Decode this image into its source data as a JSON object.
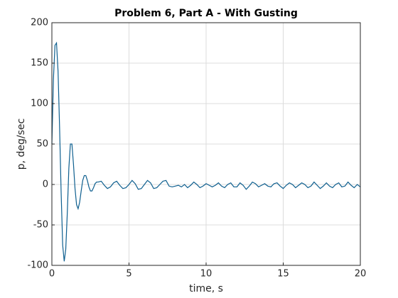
{
  "chart_data": {
    "type": "line",
    "title": "Problem 6, Part A - With Gusting",
    "xlabel": "time, s",
    "ylabel": "p, deg/sec",
    "xlim": [
      0,
      20
    ],
    "ylim": [
      -100,
      200
    ],
    "xticks": [
      0,
      5,
      10,
      15,
      20
    ],
    "yticks": [
      -100,
      -50,
      0,
      50,
      100,
      150,
      200
    ],
    "grid": true,
    "x": [
      0,
      0.1,
      0.2,
      0.3,
      0.4,
      0.5,
      0.6,
      0.7,
      0.8,
      0.9,
      1.0,
      1.1,
      1.2,
      1.3,
      1.4,
      1.5,
      1.6,
      1.7,
      1.8,
      1.9,
      2.0,
      2.1,
      2.2,
      2.3,
      2.4,
      2.5,
      2.6,
      2.7,
      2.8,
      2.9,
      3.0,
      3.2,
      3.4,
      3.6,
      3.8,
      4.0,
      4.2,
      4.4,
      4.6,
      4.8,
      5.0,
      5.2,
      5.4,
      5.6,
      5.8,
      6.0,
      6.2,
      6.4,
      6.6,
      6.8,
      7.0,
      7.2,
      7.4,
      7.6,
      7.8,
      8.0,
      8.2,
      8.4,
      8.6,
      8.8,
      9.0,
      9.2,
      9.4,
      9.6,
      9.8,
      10.0,
      10.2,
      10.4,
      10.6,
      10.8,
      11.0,
      11.2,
      11.4,
      11.6,
      11.8,
      12.0,
      12.2,
      12.4,
      12.6,
      12.8,
      13.0,
      13.2,
      13.4,
      13.6,
      13.8,
      14.0,
      14.2,
      14.4,
      14.6,
      14.8,
      15.0,
      15.2,
      15.4,
      15.6,
      15.8,
      16.0,
      16.2,
      16.4,
      16.6,
      16.8,
      17.0,
      17.2,
      17.4,
      17.6,
      17.8,
      18.0,
      18.2,
      18.4,
      18.6,
      18.8,
      19.0,
      19.2,
      19.4,
      19.6,
      19.8,
      20.0
    ],
    "series": [
      {
        "name": "p",
        "color": "#0e5f8f",
        "values": [
          50,
          130,
          172,
          175,
          140,
          70,
          -10,
          -75,
          -95,
          -80,
          -35,
          20,
          50,
          50,
          25,
          -5,
          -25,
          -30,
          -22,
          -8,
          5,
          11,
          11,
          5,
          -3,
          -8,
          -8,
          -4,
          1,
          3,
          3,
          4,
          -1,
          -5,
          -3,
          2,
          4,
          -1,
          -5,
          -4,
          0,
          5,
          1,
          -6,
          -5,
          0,
          5,
          2,
          -5,
          -4,
          0,
          4,
          5,
          -2,
          -3,
          -2,
          -1,
          -3,
          0,
          -4,
          -1,
          3,
          0,
          -4,
          -2,
          1,
          -1,
          -3,
          -1,
          2,
          -2,
          -4,
          0,
          2,
          -3,
          -3,
          2,
          -1,
          -6,
          -2,
          3,
          1,
          -3,
          -1,
          1,
          -2,
          -3,
          1,
          2,
          -2,
          -5,
          -1,
          2,
          0,
          -4,
          -1,
          2,
          0,
          -4,
          -2,
          3,
          -1,
          -5,
          -2,
          2,
          -2,
          -4,
          0,
          2,
          -3,
          -2,
          3,
          -1,
          -4,
          0,
          -3
        ]
      }
    ]
  }
}
